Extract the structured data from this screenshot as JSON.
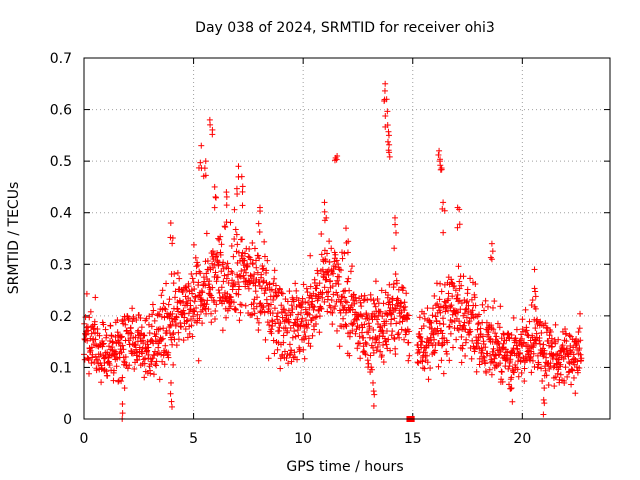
{
  "chart_data": {
    "type": "scatter",
    "title": "Day 038 of 2024, SRMTID for receiver ohi3",
    "xlabel": "GPS time / hours",
    "ylabel": "SRMTID / TECUs",
    "xlim": [
      0,
      24
    ],
    "ylim": [
      0,
      0.7
    ],
    "xticks": [
      "0",
      "5",
      "10",
      "15",
      "20"
    ],
    "yticks": [
      "0",
      "0.1",
      "0.2",
      "0.3",
      "0.4",
      "0.5",
      "0.6",
      "0.7"
    ],
    "grid": true,
    "marker": "+",
    "color": "#ff0000",
    "series": [
      {
        "name": "SRMTID",
        "trend": [
          [
            0.0,
            0.15
          ],
          [
            0.5,
            0.14
          ],
          [
            1.0,
            0.13
          ],
          [
            1.5,
            0.13
          ],
          [
            2.0,
            0.16
          ],
          [
            2.5,
            0.15
          ],
          [
            3.0,
            0.15
          ],
          [
            3.5,
            0.16
          ],
          [
            4.0,
            0.2
          ],
          [
            4.5,
            0.21
          ],
          [
            5.0,
            0.22
          ],
          [
            5.5,
            0.24
          ],
          [
            6.0,
            0.27
          ],
          [
            6.5,
            0.27
          ],
          [
            7.0,
            0.28
          ],
          [
            7.5,
            0.27
          ],
          [
            8.0,
            0.25
          ],
          [
            8.5,
            0.23
          ],
          [
            9.0,
            0.19
          ],
          [
            9.5,
            0.18
          ],
          [
            10.0,
            0.19
          ],
          [
            10.5,
            0.22
          ],
          [
            11.0,
            0.27
          ],
          [
            11.5,
            0.26
          ],
          [
            12.0,
            0.23
          ],
          [
            12.5,
            0.18
          ],
          [
            13.0,
            0.17
          ],
          [
            13.5,
            0.18
          ],
          [
            14.0,
            0.2
          ],
          [
            14.5,
            0.21
          ],
          [
            14.9,
            0.16
          ],
          [
            15.5,
            0.15
          ],
          [
            16.0,
            0.18
          ],
          [
            16.5,
            0.2
          ],
          [
            17.0,
            0.21
          ],
          [
            17.5,
            0.19
          ],
          [
            18.0,
            0.17
          ],
          [
            18.5,
            0.15
          ],
          [
            19.0,
            0.13
          ],
          [
            19.5,
            0.12
          ],
          [
            20.0,
            0.14
          ],
          [
            20.5,
            0.16
          ],
          [
            21.0,
            0.14
          ],
          [
            21.5,
            0.12
          ],
          [
            22.0,
            0.12
          ],
          [
            22.7,
            0.13
          ]
        ],
        "spikes": [
          [
            5.3,
            0.53
          ],
          [
            5.5,
            0.5
          ],
          [
            5.8,
            0.58
          ],
          [
            6.0,
            0.45
          ],
          [
            6.5,
            0.44
          ],
          [
            7.0,
            0.49
          ],
          [
            7.2,
            0.47
          ],
          [
            11.0,
            0.42
          ],
          [
            11.5,
            0.51
          ],
          [
            12.0,
            0.37
          ],
          [
            13.7,
            0.65
          ],
          [
            13.8,
            0.62
          ],
          [
            13.9,
            0.57
          ],
          [
            13.95,
            0.55
          ],
          [
            14.2,
            0.39
          ],
          [
            16.2,
            0.52
          ],
          [
            16.3,
            0.5
          ],
          [
            16.4,
            0.42
          ],
          [
            17.1,
            0.41
          ],
          [
            18.6,
            0.34
          ],
          [
            4.0,
            0.38
          ],
          [
            8.0,
            0.41
          ],
          [
            20.6,
            0.29
          ],
          [
            4.0,
            0.07
          ],
          [
            13.2,
            0.07
          ],
          [
            19.5,
            0.06
          ],
          [
            21.0,
            0.06
          ],
          [
            1.8,
            0.06
          ]
        ],
        "gap": [
          14.85,
          15.2
        ],
        "zero_markers": [
          14.85,
          14.95
        ]
      }
    ]
  }
}
